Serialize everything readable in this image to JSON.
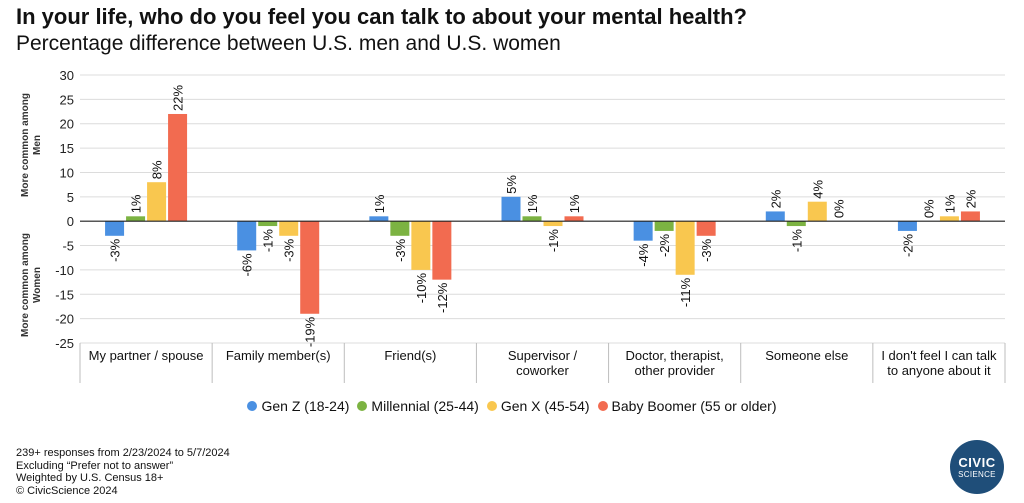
{
  "title": "In your life, who do you feel you can talk to about your mental health?",
  "subtitle": "Percentage difference between U.S. men and U.S. women",
  "chart_data": {
    "type": "bar",
    "ylim": [
      -25,
      30
    ],
    "yticks": [
      30,
      25,
      20,
      15,
      10,
      5,
      0,
      -5,
      -10,
      -15,
      -20,
      -25
    ],
    "ylabel_top": "More common among Men",
    "ylabel_bottom": "More common among Women",
    "categories": [
      [
        "My partner / spouse"
      ],
      [
        "Family member(s)"
      ],
      [
        "Friend(s)"
      ],
      [
        "Supervisor /",
        "coworker"
      ],
      [
        "Doctor, therapist,",
        "other provider"
      ],
      [
        "Someone else"
      ],
      [
        "I don't feel I can talk",
        "to anyone about it"
      ]
    ],
    "series": [
      {
        "name": "Gen Z (18-24)",
        "color": "#4a90e2",
        "values": [
          -3,
          -6,
          1,
          5,
          -4,
          2,
          -2
        ],
        "labels": [
          "-3%",
          "-6%",
          "1%",
          "5%",
          "-4%",
          "2%",
          "-2%"
        ]
      },
      {
        "name": "Millennial (25-44)",
        "color": "#7cb342",
        "values": [
          1,
          -1,
          -3,
          1,
          -2,
          -1,
          0
        ],
        "labels": [
          "1%",
          "-1%",
          "-3%",
          "1%",
          "-2%",
          "-1%",
          "0%"
        ]
      },
      {
        "name": "Gen X (45-54)",
        "color": "#f9c74f",
        "values": [
          8,
          -3,
          -10,
          -1,
          -11,
          4,
          1
        ],
        "labels": [
          "8%",
          "-3%",
          "-10%",
          "-1%",
          "-11%",
          "4%",
          "1%"
        ]
      },
      {
        "name": "Baby Boomer (55 or older)",
        "color": "#f26b50",
        "values": [
          22,
          -19,
          -12,
          1,
          -3,
          0,
          2
        ],
        "labels": [
          "22%",
          "-19%",
          "-12%",
          "1%",
          "-3%",
          "0%",
          "2%"
        ]
      }
    ],
    "grid": true
  },
  "footnotes": [
    "239+ responses from 2/23/2024 to 5/7/2024",
    "Excluding “Prefer not to answer”",
    "Weighted by U.S. Census 18+",
    "© CivicScience 2024"
  ],
  "logo": {
    "top": "CIVIC",
    "bottom": "SCIENCE"
  }
}
